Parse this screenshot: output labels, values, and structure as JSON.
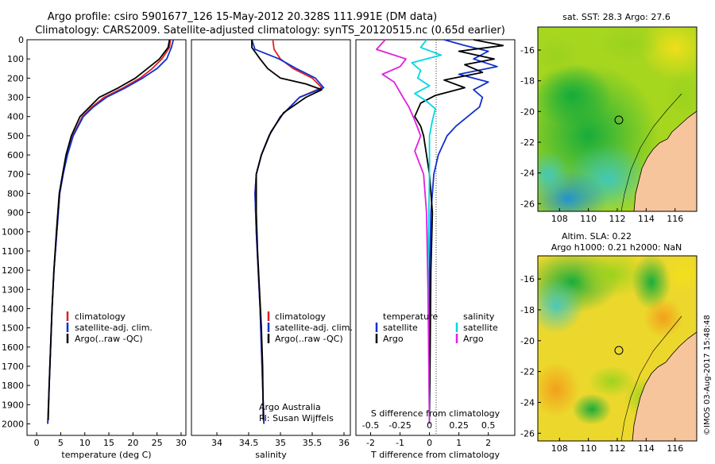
{
  "header": {
    "title_line1": "Argo profile: csiro 5901677_126 15-May-2012 20.328S 111.991E (DM data)",
    "title_line2": "Climatology: CARS2009. Satellite-adjusted climatology: synTS_20120515.nc (0.65d earlier)"
  },
  "colors": {
    "climatology": "#e02020",
    "satellite": "#1030d0",
    "argo": "#000000",
    "satellite_salinity": "#00d8e0",
    "argo_salinity": "#e020e0",
    "land": "#f7c59c"
  },
  "chart_data": [
    {
      "id": "temperature",
      "type": "line",
      "xlabel": "temperature (deg C)",
      "ylabel": "",
      "xlim": [
        -2,
        31
      ],
      "ylim": [
        2060,
        0
      ],
      "xticks": [
        0,
        5,
        10,
        15,
        20,
        25,
        30
      ],
      "yticks": [
        0,
        100,
        200,
        300,
        400,
        500,
        600,
        700,
        800,
        900,
        1000,
        1100,
        1200,
        1300,
        1400,
        1500,
        1600,
        1700,
        1800,
        1900,
        2000
      ],
      "legend": [
        "climatology",
        "satellite-adj. clim.",
        "Argo(..raw -QC)"
      ],
      "series": [
        {
          "name": "climatology",
          "color": "#e02020",
          "x": [
            27.8,
            27.6,
            26.0,
            24.0,
            21.5,
            18.0,
            14.0,
            11.5,
            9.5,
            7.5,
            6.3,
            5.5,
            4.8,
            4.2,
            3.6,
            3.2,
            2.9,
            2.6,
            2.3
          ],
          "y": [
            0,
            40,
            100,
            150,
            200,
            250,
            300,
            350,
            400,
            500,
            600,
            700,
            800,
            1000,
            1200,
            1400,
            1600,
            1800,
            2000
          ]
        },
        {
          "name": "satellite",
          "color": "#1030d0",
          "x": [
            28.4,
            28.0,
            27.0,
            25.0,
            22.0,
            18.5,
            14.5,
            11.8,
            9.7,
            7.6,
            6.4,
            5.5,
            4.8,
            4.2,
            3.6,
            3.2,
            2.9,
            2.6,
            2.3
          ],
          "y": [
            0,
            40,
            100,
            150,
            200,
            250,
            300,
            350,
            400,
            500,
            600,
            700,
            800,
            1000,
            1200,
            1400,
            1600,
            1800,
            2000
          ]
        },
        {
          "name": "Argo",
          "color": "#000000",
          "x": [
            27.6,
            27.3,
            25.5,
            23.0,
            20.5,
            17.0,
            13.0,
            11.0,
            9.0,
            7.2,
            6.1,
            5.4,
            4.7,
            4.1,
            3.6,
            3.2,
            2.9,
            2.6,
            2.4
          ],
          "y": [
            0,
            40,
            100,
            150,
            200,
            250,
            300,
            350,
            400,
            500,
            600,
            700,
            800,
            1000,
            1200,
            1400,
            1600,
            1800,
            1980
          ]
        }
      ]
    },
    {
      "id": "salinity",
      "type": "line",
      "xlabel": "salinity",
      "xlim": [
        33.6,
        36.1
      ],
      "ylim": [
        2060,
        0
      ],
      "xticks": [
        34,
        34.5,
        35,
        35.5,
        36
      ],
      "legend": [
        "climatology",
        "satellite-adj. clim.",
        "Argo(..raw -QC)"
      ],
      "annotations": [
        "Argo Australia",
        "PI: Susan Wijffels"
      ],
      "series": [
        {
          "name": "climatology",
          "color": "#e02020",
          "x": [
            34.88,
            34.9,
            35.0,
            35.2,
            35.5,
            35.65,
            35.3,
            35.0,
            34.82,
            34.7,
            34.62,
            34.6,
            34.62,
            34.65,
            34.68,
            34.7,
            34.72,
            34.74
          ],
          "y": [
            0,
            50,
            100,
            150,
            200,
            250,
            300,
            400,
            500,
            600,
            700,
            800,
            1000,
            1200,
            1400,
            1600,
            1800,
            2000
          ]
        },
        {
          "name": "satellite",
          "color": "#1030d0",
          "x": [
            34.55,
            34.6,
            34.98,
            35.25,
            35.55,
            35.68,
            35.3,
            35.0,
            34.82,
            34.7,
            34.62,
            34.6,
            34.62,
            34.65,
            34.68,
            34.7,
            34.72,
            34.74
          ],
          "y": [
            0,
            50,
            100,
            150,
            200,
            250,
            300,
            400,
            500,
            600,
            700,
            800,
            1000,
            1200,
            1400,
            1600,
            1800,
            2000
          ]
        },
        {
          "name": "Argo",
          "color": "#000000",
          "x": [
            34.55,
            34.55,
            34.68,
            34.8,
            35.0,
            35.4,
            35.65,
            35.4,
            35.05,
            34.85,
            34.7,
            34.62,
            34.62,
            34.64,
            34.67,
            34.7,
            34.72,
            34.73
          ],
          "y": [
            0,
            40,
            100,
            150,
            200,
            230,
            260,
            300,
            380,
            480,
            600,
            700,
            900,
            1100,
            1300,
            1500,
            1700,
            1980
          ]
        }
      ]
    },
    {
      "id": "difference",
      "type": "line",
      "xlabel": "T difference from climatology",
      "xlabel_top": "S difference from climatology",
      "xlim": [
        -2.5,
        2.9
      ],
      "ylim": [
        2060,
        0
      ],
      "xticks": [
        -2,
        -1,
        0,
        1,
        2
      ],
      "xticklabels_S": [
        "-0.5",
        "-0.25",
        "0",
        "0.25",
        "0.5"
      ],
      "legend_headers": [
        "temperature",
        "salinity"
      ],
      "legend": [
        "satellite",
        "Argo",
        "satellite",
        "Argo"
      ],
      "series": [
        {
          "name": "T satellite",
          "color": "#1030d0",
          "x": [
            0.5,
            1.2,
            2.0,
            1.5,
            2.3,
            1.0,
            2.0,
            1.5,
            1.8,
            1.7,
            1.3,
            0.9,
            0.6,
            0.3,
            0.15,
            0.05,
            0.0,
            0.0
          ],
          "y": [
            0,
            30,
            60,
            100,
            140,
            180,
            220,
            260,
            300,
            350,
            400,
            450,
            500,
            600,
            700,
            900,
            1200,
            2000
          ]
        },
        {
          "name": "T Argo",
          "color": "#000000",
          "x": [
            1.5,
            2.5,
            1.0,
            2.2,
            1.2,
            1.8,
            0.5,
            1.2,
            0.2,
            -0.3,
            -0.5,
            -0.3,
            -0.2,
            -0.1,
            0.0,
            0.1,
            0.05,
            0.0
          ],
          "y": [
            0,
            30,
            60,
            100,
            130,
            170,
            210,
            250,
            290,
            330,
            400,
            450,
            500,
            600,
            700,
            900,
            1200,
            2000
          ]
        },
        {
          "name": "S satellite",
          "color": "#00d8e0",
          "x": [
            -0.1,
            -0.3,
            0.4,
            -0.6,
            -0.3,
            -0.4,
            0.0,
            -0.5,
            -0.1,
            0.2,
            0.1,
            0.0,
            0.0,
            -0.05,
            0.0
          ],
          "y": [
            0,
            40,
            80,
            120,
            160,
            200,
            240,
            280,
            320,
            360,
            420,
            500,
            700,
            1200,
            2000
          ]
        },
        {
          "name": "S Argo",
          "color": "#e020e0",
          "x": [
            -1.5,
            -1.8,
            -0.8,
            -1.0,
            -1.6,
            -1.2,
            -0.9,
            -0.7,
            -0.5,
            -0.3,
            -0.5,
            -0.2,
            -0.1,
            -0.05,
            0.0
          ],
          "y": [
            0,
            50,
            100,
            140,
            180,
            220,
            300,
            350,
            420,
            500,
            580,
            700,
            900,
            1300,
            2000
          ]
        }
      ]
    },
    {
      "id": "sst_map",
      "type": "heatmap",
      "title": "sat. SST: 28.3 Argo: 27.6",
      "xticks": [
        108,
        110,
        112,
        114,
        116
      ],
      "yticks": [
        -16,
        -18,
        -20,
        -22,
        -24,
        -26
      ],
      "xlim": [
        106.5,
        117.5
      ],
      "ylim": [
        -26.5,
        -14.5
      ],
      "profile_location": [
        111.991,
        -20.328
      ]
    },
    {
      "id": "sla_map",
      "type": "heatmap",
      "title_line1": "Altim. SLA: 0.22",
      "title_line2": "Argo h1000: 0.21 h2000: NaN",
      "xticks": [
        108,
        110,
        112,
        114,
        116
      ],
      "yticks": [
        -16,
        -18,
        -20,
        -22,
        -24,
        -26
      ],
      "xlim": [
        106.5,
        117.5
      ],
      "ylim": [
        -26.5,
        -14.5
      ],
      "profile_location": [
        111.991,
        -20.328
      ]
    }
  ],
  "credit": "©IMOS 03-Aug-2017 15:48:48"
}
